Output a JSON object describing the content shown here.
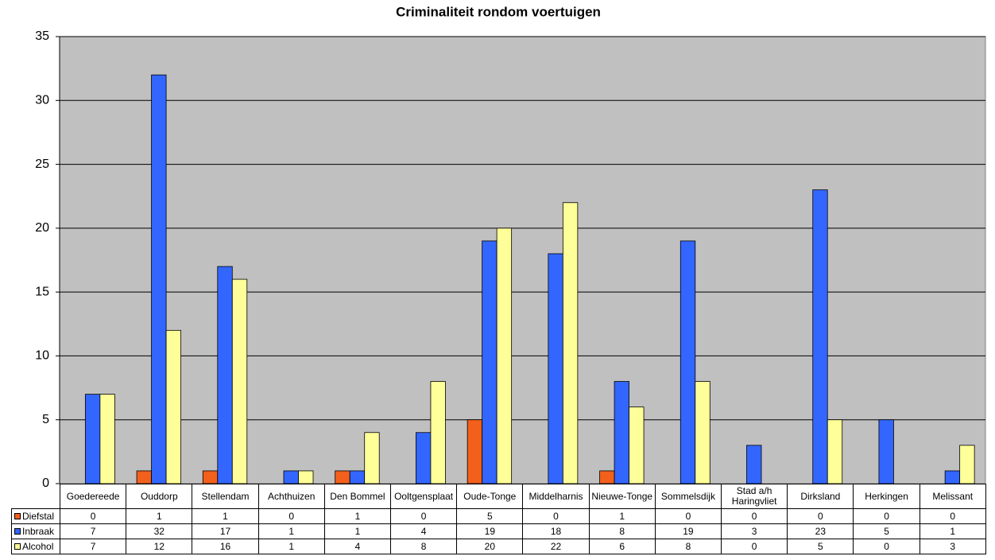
{
  "chart_data": {
    "type": "bar",
    "title": "Criminaliteit rondom voertuigen",
    "categories": [
      "Goedereede",
      "Ouddorp",
      "Stellendam",
      "Achthuizen",
      "Den Bommel",
      "Ooltgensplaat",
      "Oude-Tonge",
      "Middelharnis",
      "Nieuwe-Tonge",
      "Sommelsdijk",
      "Stad a/h Haringvliet",
      "Dirksland",
      "Herkingen",
      "Melissant"
    ],
    "series": [
      {
        "name": "Diefstal",
        "color": "#f2601c",
        "values": [
          0,
          1,
          1,
          0,
          1,
          0,
          5,
          0,
          1,
          0,
          0,
          0,
          0,
          0
        ]
      },
      {
        "name": "Inbraak",
        "color": "#3366ff",
        "values": [
          7,
          32,
          17,
          1,
          1,
          4,
          19,
          18,
          8,
          19,
          3,
          23,
          5,
          1
        ]
      },
      {
        "name": "Alcohol",
        "color": "#ffff99",
        "values": [
          7,
          12,
          16,
          1,
          4,
          8,
          20,
          22,
          6,
          8,
          0,
          5,
          0,
          3
        ]
      }
    ],
    "ylim": [
      0,
      35
    ],
    "yticks": [
      0,
      5,
      10,
      15,
      20,
      25,
      30,
      35
    ],
    "grid": true
  }
}
